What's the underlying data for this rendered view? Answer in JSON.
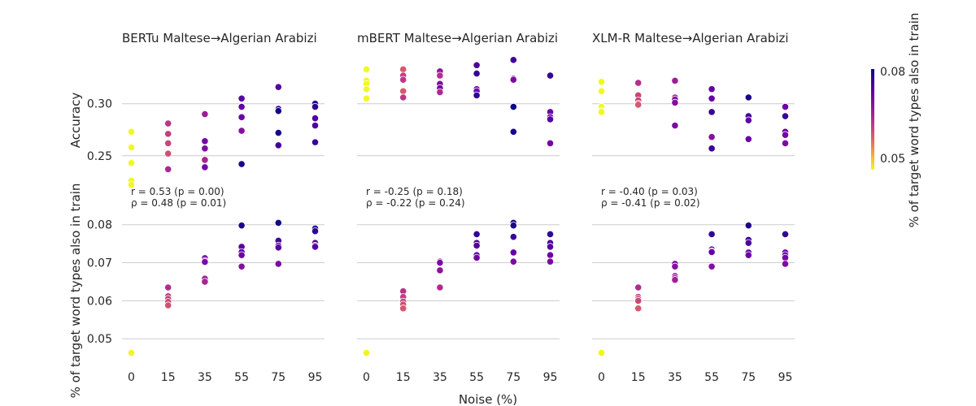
{
  "chart_data": {
    "type": "scatter",
    "x_categories": [
      0,
      15,
      35,
      55,
      75,
      95
    ],
    "xlabel": "Noise (%)",
    "ylabel_top": "Accuracy",
    "ylabel_bottom": "% of target word types also in train",
    "colorbar": {
      "label": "% of target word types also in train",
      "range": [
        0.046,
        0.081
      ],
      "ticks": [
        "0.05",
        "0.08"
      ],
      "colormap": "plasma"
    },
    "top_ylim": [
      0.228,
      0.345
    ],
    "top_yticks": [
      "0.25",
      "0.30"
    ],
    "bottom_ylim": [
      0.043,
      0.084
    ],
    "bottom_yticks": [
      "0.05",
      "0.06",
      "0.07",
      "0.08"
    ],
    "panels": [
      {
        "title": "BERTu Maltese→Algerian Arabizi",
        "stats": [
          "r = 0.53 (p = 0.00)",
          "ρ = 0.48 (p = 0.01)"
        ],
        "accuracy": [
          {
            "x": 0,
            "y": 0.273,
            "c": 0.046
          },
          {
            "x": 0,
            "y": 0.258,
            "c": 0.046
          },
          {
            "x": 0,
            "y": 0.243,
            "c": 0.046
          },
          {
            "x": 0,
            "y": 0.226,
            "c": 0.046
          },
          {
            "x": 0,
            "y": 0.222,
            "c": 0.046
          },
          {
            "x": 15,
            "y": 0.281,
            "c": 0.062
          },
          {
            "x": 15,
            "y": 0.271,
            "c": 0.061
          },
          {
            "x": 15,
            "y": 0.262,
            "c": 0.06
          },
          {
            "x": 15,
            "y": 0.252,
            "c": 0.059
          },
          {
            "x": 15,
            "y": 0.237,
            "c": 0.064
          },
          {
            "x": 35,
            "y": 0.29,
            "c": 0.066
          },
          {
            "x": 35,
            "y": 0.264,
            "c": 0.071
          },
          {
            "x": 35,
            "y": 0.257,
            "c": 0.07
          },
          {
            "x": 35,
            "y": 0.246,
            "c": 0.065
          },
          {
            "x": 35,
            "y": 0.239,
            "c": 0.071
          },
          {
            "x": 55,
            "y": 0.305,
            "c": 0.074
          },
          {
            "x": 55,
            "y": 0.297,
            "c": 0.073
          },
          {
            "x": 55,
            "y": 0.287,
            "c": 0.072
          },
          {
            "x": 55,
            "y": 0.274,
            "c": 0.069
          },
          {
            "x": 55,
            "y": 0.242,
            "c": 0.08
          },
          {
            "x": 75,
            "y": 0.316,
            "c": 0.074
          },
          {
            "x": 75,
            "y": 0.295,
            "c": 0.076
          },
          {
            "x": 75,
            "y": 0.293,
            "c": 0.081
          },
          {
            "x": 75,
            "y": 0.272,
            "c": 0.08
          },
          {
            "x": 75,
            "y": 0.26,
            "c": 0.076
          },
          {
            "x": 95,
            "y": 0.3,
            "c": 0.079
          },
          {
            "x": 95,
            "y": 0.297,
            "c": 0.078
          },
          {
            "x": 95,
            "y": 0.286,
            "c": 0.075
          },
          {
            "x": 95,
            "y": 0.279,
            "c": 0.075
          },
          {
            "x": 95,
            "y": 0.263,
            "c": 0.077
          }
        ],
        "overlap": [
          {
            "x": 0,
            "y": 0.0463
          },
          {
            "x": 15,
            "y": 0.0635
          },
          {
            "x": 15,
            "y": 0.0612
          },
          {
            "x": 15,
            "y": 0.0605
          },
          {
            "x": 15,
            "y": 0.0597
          },
          {
            "x": 15,
            "y": 0.0588
          },
          {
            "x": 35,
            "y": 0.0712
          },
          {
            "x": 35,
            "y": 0.0705
          },
          {
            "x": 35,
            "y": 0.0702
          },
          {
            "x": 35,
            "y": 0.0658
          },
          {
            "x": 35,
            "y": 0.065
          },
          {
            "x": 55,
            "y": 0.0798
          },
          {
            "x": 55,
            "y": 0.0742
          },
          {
            "x": 55,
            "y": 0.0728
          },
          {
            "x": 55,
            "y": 0.072
          },
          {
            "x": 55,
            "y": 0.069
          },
          {
            "x": 75,
            "y": 0.0805
          },
          {
            "x": 75,
            "y": 0.0758
          },
          {
            "x": 75,
            "y": 0.0745
          },
          {
            "x": 75,
            "y": 0.074
          },
          {
            "x": 75,
            "y": 0.0697
          },
          {
            "x": 95,
            "y": 0.079
          },
          {
            "x": 95,
            "y": 0.0783
          },
          {
            "x": 95,
            "y": 0.0752
          },
          {
            "x": 95,
            "y": 0.0745
          },
          {
            "x": 95,
            "y": 0.0742
          }
        ]
      },
      {
        "title": "mBERT Maltese→Algerian Arabizi",
        "stats": [
          "r = -0.25 (p = 0.18)",
          "ρ = -0.22 (p = 0.24)"
        ],
        "accuracy": [
          {
            "x": 0,
            "y": 0.333,
            "c": 0.046
          },
          {
            "x": 0,
            "y": 0.322,
            "c": 0.046
          },
          {
            "x": 0,
            "y": 0.319,
            "c": 0.046
          },
          {
            "x": 0,
            "y": 0.314,
            "c": 0.046
          },
          {
            "x": 0,
            "y": 0.305,
            "c": 0.046
          },
          {
            "x": 15,
            "y": 0.333,
            "c": 0.058
          },
          {
            "x": 15,
            "y": 0.327,
            "c": 0.061
          },
          {
            "x": 15,
            "y": 0.323,
            "c": 0.062
          },
          {
            "x": 15,
            "y": 0.312,
            "c": 0.058
          },
          {
            "x": 15,
            "y": 0.306,
            "c": 0.062
          },
          {
            "x": 35,
            "y": 0.331,
            "c": 0.068
          },
          {
            "x": 35,
            "y": 0.327,
            "c": 0.063
          },
          {
            "x": 35,
            "y": 0.319,
            "c": 0.07
          },
          {
            "x": 35,
            "y": 0.315,
            "c": 0.07
          },
          {
            "x": 35,
            "y": 0.311,
            "c": 0.064
          },
          {
            "x": 55,
            "y": 0.337,
            "c": 0.075
          },
          {
            "x": 55,
            "y": 0.329,
            "c": 0.077
          },
          {
            "x": 55,
            "y": 0.314,
            "c": 0.072
          },
          {
            "x": 55,
            "y": 0.312,
            "c": 0.071
          },
          {
            "x": 55,
            "y": 0.308,
            "c": 0.078
          },
          {
            "x": 75,
            "y": 0.342,
            "c": 0.076
          },
          {
            "x": 75,
            "y": 0.324,
            "c": 0.073
          },
          {
            "x": 75,
            "y": 0.323,
            "c": 0.07
          },
          {
            "x": 75,
            "y": 0.297,
            "c": 0.081
          },
          {
            "x": 75,
            "y": 0.273,
            "c": 0.08
          },
          {
            "x": 95,
            "y": 0.327,
            "c": 0.077
          },
          {
            "x": 95,
            "y": 0.292,
            "c": 0.072
          },
          {
            "x": 95,
            "y": 0.287,
            "c": 0.075
          },
          {
            "x": 95,
            "y": 0.285,
            "c": 0.074
          },
          {
            "x": 95,
            "y": 0.262,
            "c": 0.071
          }
        ],
        "overlap": [
          {
            "x": 0,
            "y": 0.0463
          },
          {
            "x": 15,
            "y": 0.0625
          },
          {
            "x": 15,
            "y": 0.061
          },
          {
            "x": 15,
            "y": 0.0598
          },
          {
            "x": 15,
            "y": 0.059
          },
          {
            "x": 15,
            "y": 0.058
          },
          {
            "x": 35,
            "y": 0.0703
          },
          {
            "x": 35,
            "y": 0.07
          },
          {
            "x": 35,
            "y": 0.068
          },
          {
            "x": 35,
            "y": 0.0635
          },
          {
            "x": 35,
            "y": 0.0635
          },
          {
            "x": 55,
            "y": 0.0775
          },
          {
            "x": 55,
            "y": 0.0752
          },
          {
            "x": 55,
            "y": 0.0745
          },
          {
            "x": 55,
            "y": 0.072
          },
          {
            "x": 55,
            "y": 0.0713
          },
          {
            "x": 75,
            "y": 0.0805
          },
          {
            "x": 75,
            "y": 0.0798
          },
          {
            "x": 75,
            "y": 0.0768
          },
          {
            "x": 75,
            "y": 0.0727
          },
          {
            "x": 75,
            "y": 0.0703
          },
          {
            "x": 95,
            "y": 0.0775
          },
          {
            "x": 95,
            "y": 0.0752
          },
          {
            "x": 95,
            "y": 0.0742
          },
          {
            "x": 95,
            "y": 0.072
          },
          {
            "x": 95,
            "y": 0.0703
          }
        ]
      },
      {
        "title": "XLM-R Maltese→Algerian Arabizi",
        "stats": [
          "r = -0.40 (p = 0.03)",
          "ρ = -0.41 (p = 0.02)"
        ],
        "accuracy": [
          {
            "x": 0,
            "y": 0.321,
            "c": 0.046
          },
          {
            "x": 0,
            "y": 0.312,
            "c": 0.046
          },
          {
            "x": 0,
            "y": 0.297,
            "c": 0.046
          },
          {
            "x": 0,
            "y": 0.293,
            "c": 0.046
          },
          {
            "x": 0,
            "y": 0.292,
            "c": 0.046
          },
          {
            "x": 15,
            "y": 0.32,
            "c": 0.063
          },
          {
            "x": 15,
            "y": 0.308,
            "c": 0.06
          },
          {
            "x": 15,
            "y": 0.303,
            "c": 0.061
          },
          {
            "x": 15,
            "y": 0.3,
            "c": 0.06
          },
          {
            "x": 15,
            "y": 0.299,
            "c": 0.058
          },
          {
            "x": 35,
            "y": 0.322,
            "c": 0.066
          },
          {
            "x": 35,
            "y": 0.306,
            "c": 0.065
          },
          {
            "x": 35,
            "y": 0.304,
            "c": 0.07
          },
          {
            "x": 35,
            "y": 0.301,
            "c": 0.069
          },
          {
            "x": 35,
            "y": 0.279,
            "c": 0.07
          },
          {
            "x": 55,
            "y": 0.314,
            "c": 0.073
          },
          {
            "x": 55,
            "y": 0.305,
            "c": 0.073
          },
          {
            "x": 55,
            "y": 0.292,
            "c": 0.077
          },
          {
            "x": 55,
            "y": 0.268,
            "c": 0.069
          },
          {
            "x": 55,
            "y": 0.257,
            "c": 0.077
          },
          {
            "x": 75,
            "y": 0.306,
            "c": 0.08
          },
          {
            "x": 75,
            "y": 0.288,
            "c": 0.076
          },
          {
            "x": 75,
            "y": 0.284,
            "c": 0.075
          },
          {
            "x": 75,
            "y": 0.284,
            "c": 0.073
          },
          {
            "x": 75,
            "y": 0.266,
            "c": 0.072
          },
          {
            "x": 95,
            "y": 0.297,
            "c": 0.072
          },
          {
            "x": 95,
            "y": 0.288,
            "c": 0.077
          },
          {
            "x": 95,
            "y": 0.273,
            "c": 0.073
          },
          {
            "x": 95,
            "y": 0.27,
            "c": 0.071
          },
          {
            "x": 95,
            "y": 0.262,
            "c": 0.07
          }
        ],
        "overlap": [
          {
            "x": 0,
            "y": 0.0463
          },
          {
            "x": 15,
            "y": 0.0635
          },
          {
            "x": 15,
            "y": 0.061
          },
          {
            "x": 15,
            "y": 0.0605
          },
          {
            "x": 15,
            "y": 0.06
          },
          {
            "x": 15,
            "y": 0.058
          },
          {
            "x": 35,
            "y": 0.0697
          },
          {
            "x": 35,
            "y": 0.069
          },
          {
            "x": 35,
            "y": 0.0665
          },
          {
            "x": 35,
            "y": 0.066
          },
          {
            "x": 35,
            "y": 0.0655
          },
          {
            "x": 55,
            "y": 0.0775
          },
          {
            "x": 55,
            "y": 0.0735
          },
          {
            "x": 55,
            "y": 0.073
          },
          {
            "x": 55,
            "y": 0.0728
          },
          {
            "x": 55,
            "y": 0.069
          },
          {
            "x": 75,
            "y": 0.0798
          },
          {
            "x": 75,
            "y": 0.076
          },
          {
            "x": 75,
            "y": 0.0752
          },
          {
            "x": 75,
            "y": 0.0727
          },
          {
            "x": 75,
            "y": 0.072
          },
          {
            "x": 95,
            "y": 0.0775
          },
          {
            "x": 95,
            "y": 0.0727
          },
          {
            "x": 95,
            "y": 0.072
          },
          {
            "x": 95,
            "y": 0.0713
          },
          {
            "x": 95,
            "y": 0.0697
          }
        ]
      }
    ]
  }
}
